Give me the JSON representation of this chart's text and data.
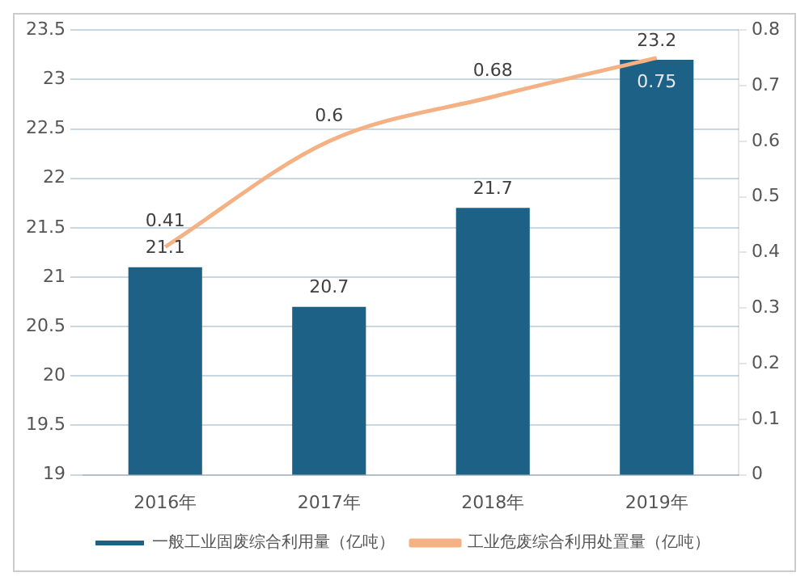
{
  "chart_data": {
    "type": "bar",
    "categories": [
      "2016年",
      "2017年",
      "2018年",
      "2019年"
    ],
    "series": [
      {
        "name": "一般工业固废综合利用量（亿吨）",
        "color": "#1d6286",
        "values": [
          21.1,
          20.7,
          21.7,
          23.2
        ]
      },
      {
        "name": "工业危废综合利用处置量（亿吨）",
        "type": "line",
        "axis": "y2",
        "color": "#f4b183",
        "values": [
          0.41,
          0.6,
          0.68,
          0.75
        ]
      }
    ],
    "ylim": [
      19,
      23.5
    ],
    "yticks": [
      19,
      19.5,
      20,
      20.5,
      21,
      21.5,
      22,
      22.5,
      23,
      23.5
    ],
    "y2lim": [
      0,
      0.8
    ],
    "y2ticks": [
      0,
      0.1,
      0.2,
      0.3,
      0.4,
      0.5,
      0.6,
      0.7,
      0.8
    ],
    "grid": "y",
    "legend": "bottom",
    "data_labels": true,
    "marker": "none",
    "line_style": "solid"
  }
}
